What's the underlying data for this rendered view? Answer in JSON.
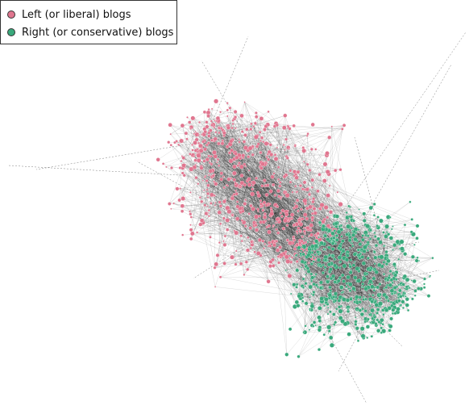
{
  "legend": {
    "items": [
      {
        "label": "Left (or liberal) blogs",
        "color": "#e0768f"
      },
      {
        "label": "Right (or conservative) blogs",
        "color": "#3aa97c"
      }
    ]
  }
}
